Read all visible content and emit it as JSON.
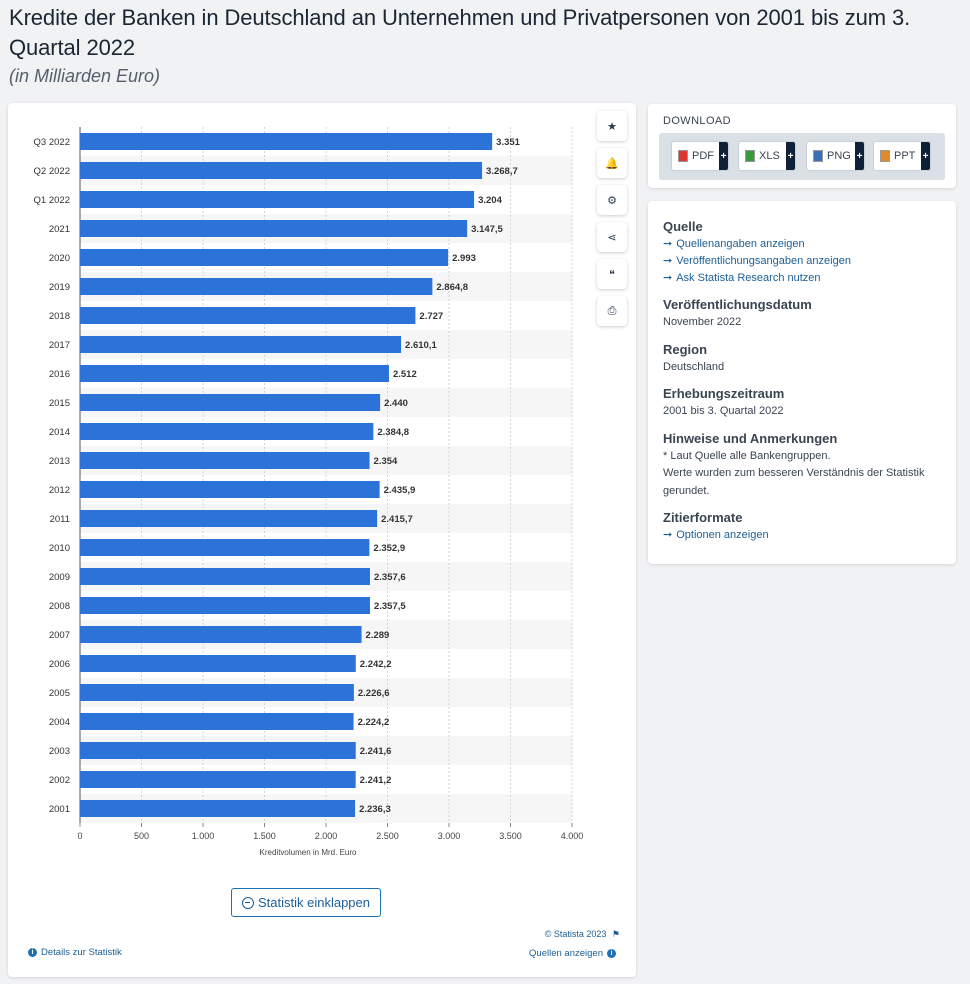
{
  "page": {
    "title": "Kredite der Banken in Deutschland an Unternehmen und Privatpersonen von 2001 bis zum 3. Quartal 2022",
    "subtitle": "(in Milliarden Euro)"
  },
  "chart_data": {
    "type": "bar",
    "orientation": "horizontal",
    "categories": [
      "Q3 2022",
      "Q2 2022",
      "Q1 2022",
      "2021",
      "2020",
      "2019",
      "2018",
      "2017",
      "2016",
      "2015",
      "2014",
      "2013",
      "2012",
      "2011",
      "2010",
      "2009",
      "2008",
      "2007",
      "2006",
      "2005",
      "2004",
      "2003",
      "2002",
      "2001"
    ],
    "values": [
      3351,
      3268.7,
      3204,
      3147.5,
      2993,
      2864.8,
      2727,
      2610.1,
      2512,
      2440,
      2384.8,
      2354,
      2435.9,
      2415.7,
      2352.9,
      2357.6,
      2357.5,
      2289,
      2242.2,
      2226.6,
      2224.2,
      2241.6,
      2241.2,
      2236.3
    ],
    "value_labels": [
      "3.351",
      "3.268,7",
      "3.204",
      "3.147,5",
      "2.993",
      "2.864,8",
      "2.727",
      "2.610,1",
      "2.512",
      "2.440",
      "2.384,8",
      "2.354",
      "2.435,9",
      "2.415,7",
      "2.352,9",
      "2.357,6",
      "2.357,5",
      "2.289",
      "2.242,2",
      "2.226,6",
      "2.224,2",
      "2.241,6",
      "2.241,2",
      "2.236,3"
    ],
    "xticks": [
      0,
      500,
      1000,
      1500,
      2000,
      2500,
      3000,
      3500,
      4000
    ],
    "xtick_labels": [
      "0",
      "500",
      "1.000",
      "1.500",
      "2.000",
      "2.500",
      "3.000",
      "3.500",
      "4.000"
    ],
    "xlim": [
      0,
      4000
    ],
    "xlabel": "Kreditvolumen in Mrd. Euro",
    "grid": true,
    "bar_color": "#2b72d9"
  },
  "chart_footer": {
    "collapse_label": "Statistik einklappen",
    "credit": "© Statista 2023",
    "details_label": "Details zur Statistik",
    "sources_label": "Quellen anzeigen"
  },
  "toolbar": {
    "icons": [
      {
        "name": "star-icon",
        "glyph": "★"
      },
      {
        "name": "bell-icon",
        "glyph": "🔔"
      },
      {
        "name": "gear-icon",
        "glyph": "⚙"
      },
      {
        "name": "share-icon",
        "glyph": "⋖"
      },
      {
        "name": "quote-icon",
        "glyph": "❝"
      },
      {
        "name": "print-icon",
        "glyph": "⎙"
      }
    ]
  },
  "download": {
    "title": "DOWNLOAD",
    "buttons": [
      {
        "label": "PDF",
        "color": "#d33"
      },
      {
        "label": "XLS",
        "color": "#3a9a3a"
      },
      {
        "label": "PNG",
        "color": "#3a6fb5"
      },
      {
        "label": "PPT",
        "color": "#e08a2b"
      }
    ]
  },
  "info": {
    "source_heading": "Quelle",
    "source_links": [
      "Quellenangaben anzeigen",
      "Veröffentlichungsangaben anzeigen",
      "Ask Statista Research nutzen"
    ],
    "pubdate_heading": "Veröffentlichungsdatum",
    "pubdate": "November 2022",
    "region_heading": "Region",
    "region": "Deutschland",
    "period_heading": "Erhebungszeitraum",
    "period": "2001 bis 3. Quartal 2022",
    "notes_heading": "Hinweise und Anmerkungen",
    "notes_1": "* Laut Quelle alle Bankengruppen.",
    "notes_2": "Werte wurden zum besseren Verständnis der Statistik gerundet.",
    "cite_heading": "Zitierformate",
    "cite_link": "Optionen anzeigen"
  }
}
